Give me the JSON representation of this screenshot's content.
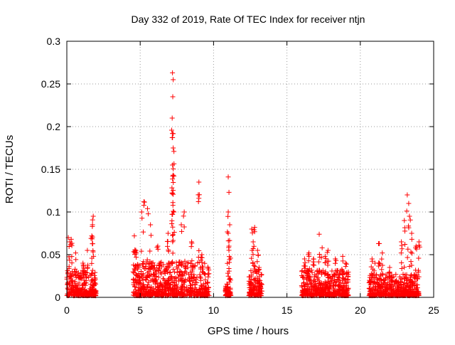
{
  "chart_data": {
    "type": "scatter",
    "title": "Day 332 of 2019, Rate Of TEC Index for receiver ntjn",
    "xlabel": "GPS time / hours",
    "ylabel": "ROTI / TECUs",
    "xlim": [
      0,
      25
    ],
    "ylim": [
      0,
      0.3
    ],
    "grid": true,
    "x_ticks": [
      0,
      5,
      10,
      15,
      20,
      25
    ],
    "x_tick_labels": [
      "0",
      "5",
      "10",
      "15",
      "20",
      "25"
    ],
    "y_ticks": [
      0,
      0.05,
      0.1,
      0.15,
      0.2,
      0.25,
      0.3
    ],
    "y_tick_labels": [
      "0",
      "0.05",
      "0.1",
      "0.15",
      "0.2",
      "0.25",
      "0.3"
    ],
    "marker": "plus",
    "marker_color": "#ff0000",
    "series": [
      {
        "name": "ROTI",
        "clusters": [
          {
            "x_range": [
              0.0,
              2.0
            ],
            "typical_max": 0.03,
            "peaks": [
              [
                0.1,
                0.07
              ],
              [
                0.2,
                0.065
              ],
              [
                0.3,
                0.068
              ],
              [
                0.6,
                0.052
              ],
              [
                1.1,
                0.04
              ],
              [
                1.4,
                0.055
              ],
              [
                1.7,
                0.072
              ],
              [
                1.75,
                0.085
              ],
              [
                1.8,
                0.095
              ]
            ]
          },
          {
            "x_range": [
              4.5,
              9.7
            ],
            "typical_max": 0.04,
            "peaks": [
              [
                4.6,
                0.072
              ],
              [
                4.7,
                0.055
              ],
              [
                5.1,
                0.1
              ],
              [
                5.25,
                0.112
              ],
              [
                5.5,
                0.104
              ],
              [
                5.7,
                0.085
              ],
              [
                6.2,
                0.06
              ],
              [
                6.9,
                0.075
              ],
              [
                7.2,
                0.263
              ],
              [
                7.25,
                0.255
              ],
              [
                7.22,
                0.235
              ],
              [
                7.18,
                0.21
              ],
              [
                7.2,
                0.192
              ],
              [
                7.25,
                0.175
              ],
              [
                7.2,
                0.155
              ],
              [
                7.22,
                0.142
              ],
              [
                7.3,
                0.1
              ],
              [
                7.8,
                0.085
              ],
              [
                8.0,
                0.1
              ],
              [
                8.5,
                0.065
              ],
              [
                9.0,
                0.135
              ],
              [
                9.0,
                0.116
              ],
              [
                9.2,
                0.05
              ]
            ]
          },
          {
            "x_range": [
              10.8,
              11.2
            ],
            "typical_max": 0.02,
            "peaks": [
              [
                11.0,
                0.141
              ],
              [
                11.05,
                0.123
              ],
              [
                11.0,
                0.1
              ],
              [
                11.1,
                0.085
              ],
              [
                11.0,
                0.075
              ],
              [
                11.05,
                0.06
              ]
            ]
          },
          {
            "x_range": [
              12.4,
              13.3
            ],
            "typical_max": 0.03,
            "peaks": [
              [
                12.6,
                0.08
              ],
              [
                12.7,
                0.065
              ],
              [
                12.8,
                0.082
              ],
              [
                13.0,
                0.055
              ],
              [
                13.1,
                0.035
              ]
            ]
          },
          {
            "x_range": [
              16.0,
              19.2
            ],
            "typical_max": 0.03,
            "peaks": [
              [
                16.2,
                0.045
              ],
              [
                16.5,
                0.052
              ],
              [
                16.8,
                0.045
              ],
              [
                17.2,
                0.074
              ],
              [
                17.4,
                0.058
              ],
              [
                17.6,
                0.048
              ],
              [
                17.8,
                0.055
              ],
              [
                18.3,
                0.045
              ],
              [
                18.8,
                0.048
              ],
              [
                19.0,
                0.04
              ]
            ]
          },
          {
            "x_range": [
              20.6,
              24.0
            ],
            "typical_max": 0.025,
            "peaks": [
              [
                20.8,
                0.045
              ],
              [
                21.0,
                0.04
              ],
              [
                21.3,
                0.063
              ],
              [
                21.5,
                0.052
              ],
              [
                22.0,
                0.035
              ],
              [
                22.8,
                0.065
              ],
              [
                23.0,
                0.09
              ],
              [
                23.2,
                0.12
              ],
              [
                23.3,
                0.11
              ],
              [
                23.35,
                0.095
              ],
              [
                23.5,
                0.075
              ],
              [
                23.8,
                0.06
              ],
              [
                24.0,
                0.065
              ]
            ]
          }
        ]
      }
    ]
  }
}
